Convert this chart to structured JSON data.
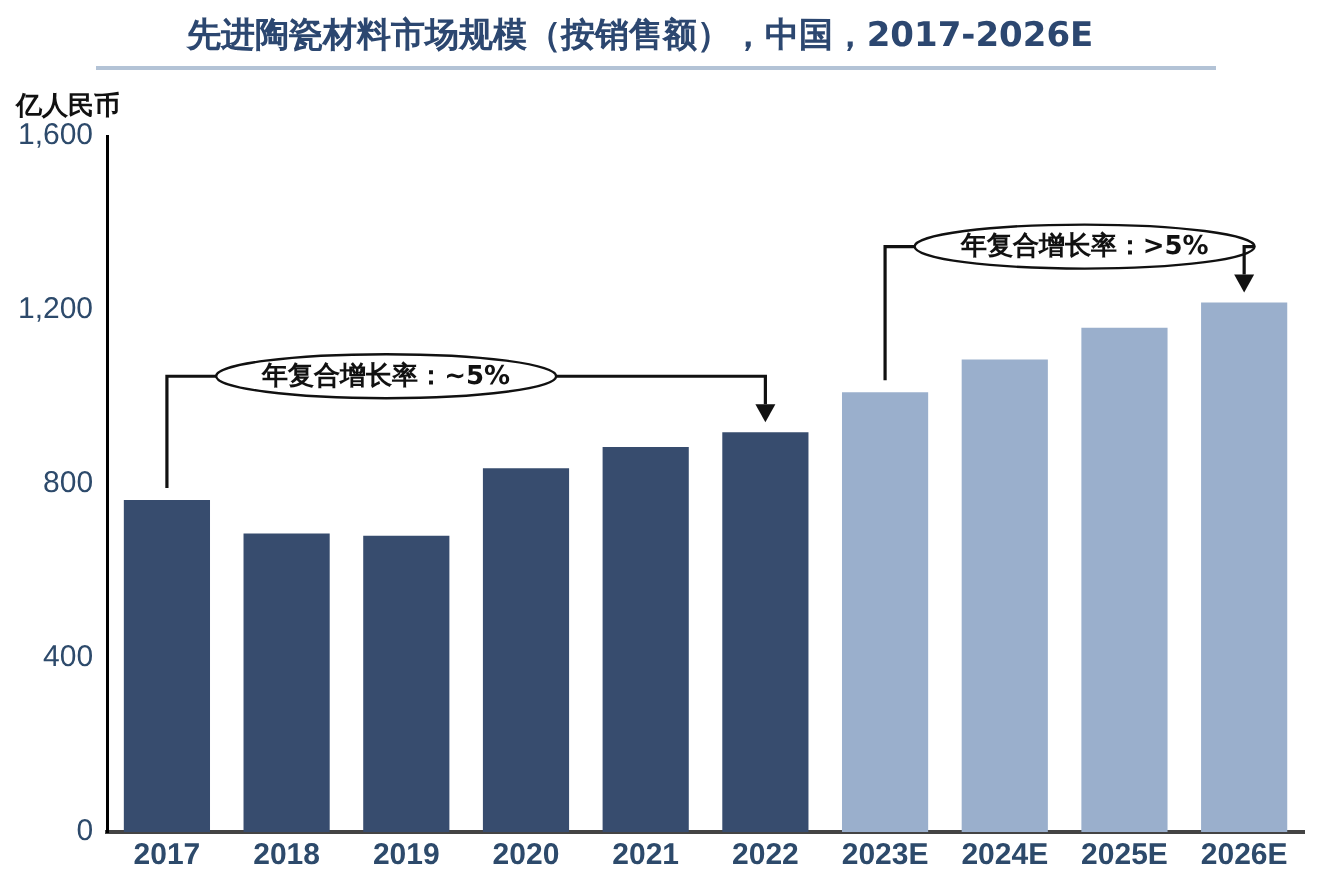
{
  "chart_data": {
    "type": "bar",
    "title": "先进陶瓷材料市场规模（按销售额），中国，2017-2026E",
    "ylabel": "亿人民币",
    "categories": [
      "2017",
      "2018",
      "2019",
      "2020",
      "2021",
      "2022",
      "2023E",
      "2024E",
      "2025E",
      "2026E"
    ],
    "values": [
      763,
      686,
      681,
      836,
      885,
      919,
      1011,
      1086,
      1159,
      1217
    ],
    "colors": [
      "#374c6e",
      "#374c6e",
      "#374c6e",
      "#374c6e",
      "#374c6e",
      "#374c6e",
      "#9aafcc",
      "#9aafcc",
      "#9aafcc",
      "#9aafcc"
    ],
    "ylim": [
      0,
      1600
    ],
    "yticks": [
      0,
      400,
      800,
      {
        "value": 1200,
        "label": "1,200"
      },
      {
        "value": 1600,
        "label": "1,600"
      }
    ],
    "grid": false,
    "legend": false,
    "annotations": [
      "年复合增长率：~5%",
      "年复合增长率：>5%"
    ]
  }
}
